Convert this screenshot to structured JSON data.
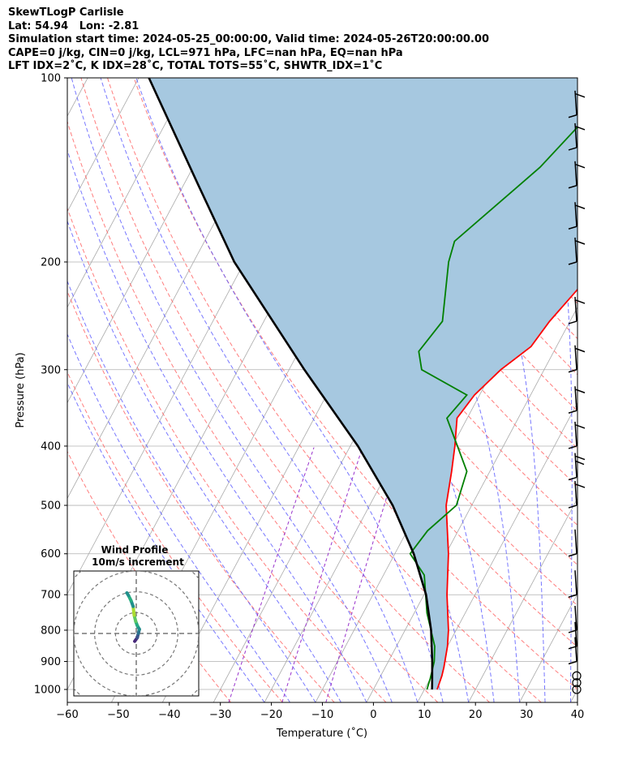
{
  "header": {
    "line1": "SkewTLogP Carlisle",
    "line2": "Lat: 54.94   Lon: -2.81",
    "line3": "Simulation start time: 2024-05-25_00:00:00, Valid time: 2024-05-26T20:00:00.00",
    "line4": "CAPE=0 j/kg, CIN=0 j/kg, LCL=971 hPa, LFC=nan hPa, EQ=nan hPa",
    "line5": "LFT IDX=2˚C, K IDX=28˚C, TOTAL TOTS=55˚C, SHWTR_IDX=1˚C"
  },
  "colors": {
    "temperature": "#ff0000",
    "dewpoint": "#008000",
    "parcel": "#000000",
    "cape_fill": "#a6c8e0",
    "dry_adiabat": "#ff6666",
    "moist_adiabat": "#5555ff",
    "mixing_ratio": "#9933cc",
    "isotherm": "#aaaaaa"
  },
  "chart_data": {
    "type": "line",
    "xlabel": "Temperature (˚C)",
    "ylabel": "Pressure (hPa)",
    "xlim": [
      -60,
      40
    ],
    "ylim": [
      1050,
      100
    ],
    "y_scale": "log",
    "grid": true,
    "xticks": [
      "−60",
      "−50",
      "−40",
      "−30",
      "−20",
      "−10",
      "0",
      "10",
      "20",
      "30",
      "40"
    ],
    "yticks": [
      "100",
      "200",
      "300",
      "400",
      "500",
      "600",
      "700",
      "800",
      "900",
      "1000"
    ],
    "series": [
      {
        "key": "temperature",
        "points": [
          [
            1000,
            12.5
          ],
          [
            950,
            12
          ],
          [
            920,
            11.5
          ],
          [
            850,
            10
          ],
          [
            800,
            8.5
          ],
          [
            700,
            4.5
          ],
          [
            600,
            0.5
          ],
          [
            500,
            -5
          ],
          [
            440,
            -7.5
          ],
          [
            400,
            -9.5
          ],
          [
            360,
            -12
          ],
          [
            330,
            -11
          ],
          [
            300,
            -8.5
          ],
          [
            275,
            -5
          ],
          [
            250,
            -4
          ],
          [
            200,
            0
          ],
          [
            180,
            3
          ],
          [
            150,
            5
          ],
          [
            130,
            9
          ],
          [
            110,
            15
          ],
          [
            100,
            18
          ]
        ]
      },
      {
        "key": "dewpoint",
        "points": [
          [
            1000,
            10.5
          ],
          [
            960,
            10
          ],
          [
            900,
            9
          ],
          [
            850,
            7.5
          ],
          [
            750,
            2.5
          ],
          [
            650,
            -2
          ],
          [
            600,
            -7
          ],
          [
            550,
            -6
          ],
          [
            500,
            -3
          ],
          [
            440,
            -4.5
          ],
          [
            400,
            -9
          ],
          [
            360,
            -14
          ],
          [
            330,
            -12.5
          ],
          [
            300,
            -24
          ],
          [
            280,
            -26.5
          ],
          [
            250,
            -25
          ],
          [
            200,
            -30
          ],
          [
            185,
            -31
          ],
          [
            140,
            -22
          ],
          [
            100,
            -15
          ]
        ]
      },
      {
        "key": "parcel",
        "points": [
          [
            1000,
            11.5
          ],
          [
            971,
            10.7
          ],
          [
            900,
            8.6
          ],
          [
            800,
            5.1
          ],
          [
            700,
            0.4
          ],
          [
            600,
            -6.3
          ],
          [
            500,
            -15.5
          ],
          [
            400,
            -28.5
          ],
          [
            300,
            -47
          ],
          [
            200,
            -72
          ],
          [
            150,
            -87
          ],
          [
            100,
            -108
          ]
        ]
      }
    ],
    "wind_barbs": [
      {
        "p": 1000,
        "shape": "calm"
      },
      {
        "p": 975,
        "shape": "calm"
      },
      {
        "p": 950,
        "shape": "calm"
      },
      {
        "p": 900,
        "shape": "short"
      },
      {
        "p": 850,
        "shape": "short"
      },
      {
        "p": 800,
        "shape": "short"
      },
      {
        "p": 700,
        "shape": "short"
      },
      {
        "p": 600,
        "shape": "short"
      },
      {
        "p": 500,
        "shape": "full"
      },
      {
        "p": 450,
        "shape": "two"
      },
      {
        "p": 400,
        "shape": "full"
      },
      {
        "p": 350,
        "shape": "full"
      },
      {
        "p": 300,
        "shape": "full"
      },
      {
        "p": 250,
        "shape": "full"
      },
      {
        "p": 200,
        "shape": "full"
      },
      {
        "p": 175,
        "shape": "full"
      },
      {
        "p": 150,
        "shape": "full"
      },
      {
        "p": 130,
        "shape": "full"
      },
      {
        "p": 115,
        "shape": "full"
      }
    ],
    "hodograph": {
      "title": "Wind Profile",
      "subtitle": "10m/s increment",
      "xlim": [
        -12,
        12
      ],
      "ylim": [
        -12,
        12
      ],
      "ring_spacing": 4,
      "points": [
        [
          -0.3,
          -1.5
        ],
        [
          0.2,
          -0.8
        ],
        [
          0.4,
          0
        ],
        [
          0.6,
          0.8
        ],
        [
          0.2,
          1.5
        ],
        [
          -0.1,
          2.3
        ],
        [
          -0.4,
          3.5
        ],
        [
          -0.6,
          5.2
        ],
        [
          -1.0,
          6.3
        ],
        [
          -1.5,
          7.3
        ],
        [
          -1.8,
          7.8
        ]
      ]
    }
  }
}
